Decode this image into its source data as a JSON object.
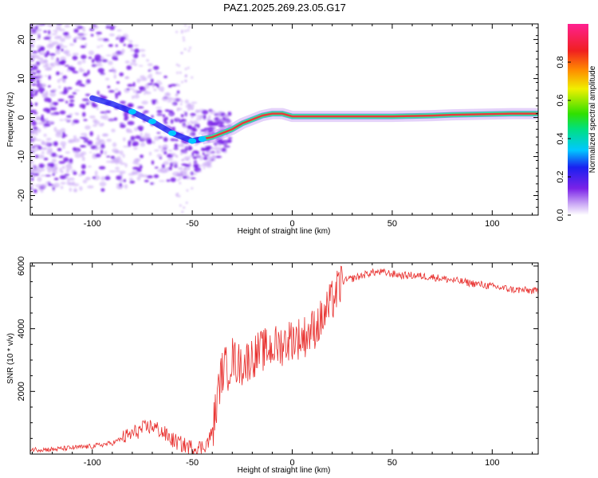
{
  "title": "PAZ1.2025.269.23.05.G17",
  "colors": {
    "frame": "#000000",
    "snr_line": "#e8302e",
    "ridge_core": "#e83a3a",
    "ridge_glow": "#34e0a0",
    "scatter": "#7a22e8",
    "scatter_light": "#c9a6f5"
  },
  "chart_data": [
    {
      "type": "heatmap",
      "xlabel": "Height of straight line (km)",
      "ylabel": "Frequency (Hz)",
      "xlim": [
        -131,
        123
      ],
      "ylim": [
        -25,
        24
      ],
      "xticks": [
        -100,
        -50,
        0,
        50,
        100
      ],
      "yticks": [
        -20,
        -10,
        0,
        10,
        20
      ],
      "grid": false,
      "colorbar": {
        "label": "Normalized spectral amplitude",
        "ticks": [
          0.0,
          0.2,
          0.4,
          0.6,
          0.8
        ],
        "range": [
          0.0,
          1.0
        ],
        "colormap": "rainbow (violet → blue → cyan → green → yellow → red → magenta)"
      },
      "ridge": {
        "x": [
          -100,
          -90,
          -80,
          -70,
          -60,
          -50,
          -45,
          -40,
          -35,
          -30,
          -25,
          -20,
          -15,
          -10,
          -5,
          0,
          10,
          20,
          30,
          40,
          50,
          60,
          70,
          80,
          90,
          100,
          110,
          123
        ],
        "y": [
          5,
          3.5,
          1.5,
          -1,
          -4,
          -6,
          -5.5,
          -5,
          -4,
          -3,
          -1.5,
          -0.5,
          0.5,
          1,
          1,
          0.3,
          0.3,
          0.3,
          0.3,
          0.3,
          0.3,
          0.4,
          0.5,
          0.7,
          0.8,
          0.9,
          1.0,
          1.0
        ]
      }
    },
    {
      "type": "line",
      "xlabel": "Height of straight line (km)",
      "ylabel": "SNR (10 * v/v)",
      "xlim": [
        -131,
        123
      ],
      "ylim": [
        0,
        6100
      ],
      "xticks": [
        -100,
        -50,
        0,
        50,
        100
      ],
      "yticks": [
        2000,
        4000,
        6000
      ],
      "grid": false,
      "series": [
        {
          "x": [
            -131,
            -120,
            -110,
            -100,
            -90,
            -80,
            -75,
            -70,
            -65,
            -60,
            -55,
            -50,
            -45,
            -42,
            -40,
            -38,
            -36,
            -34,
            -32,
            -30,
            -28,
            -25,
            -20,
            -15,
            -10,
            -5,
            0,
            5,
            10,
            15,
            20,
            25,
            30,
            35,
            40,
            45,
            50,
            55,
            60,
            70,
            80,
            90,
            100,
            110,
            123
          ],
          "y": [
            150,
            150,
            200,
            250,
            350,
            650,
            800,
            900,
            700,
            450,
            300,
            200,
            220,
            400,
            700,
            1500,
            2400,
            2800,
            2700,
            3100,
            2900,
            2850,
            3100,
            3300,
            3400,
            3500,
            3700,
            3700,
            3950,
            4300,
            4900,
            5500,
            5600,
            5700,
            5800,
            5800,
            5750,
            5700,
            5700,
            5650,
            5550,
            5450,
            5350,
            5250,
            5200
          ]
        }
      ]
    }
  ]
}
